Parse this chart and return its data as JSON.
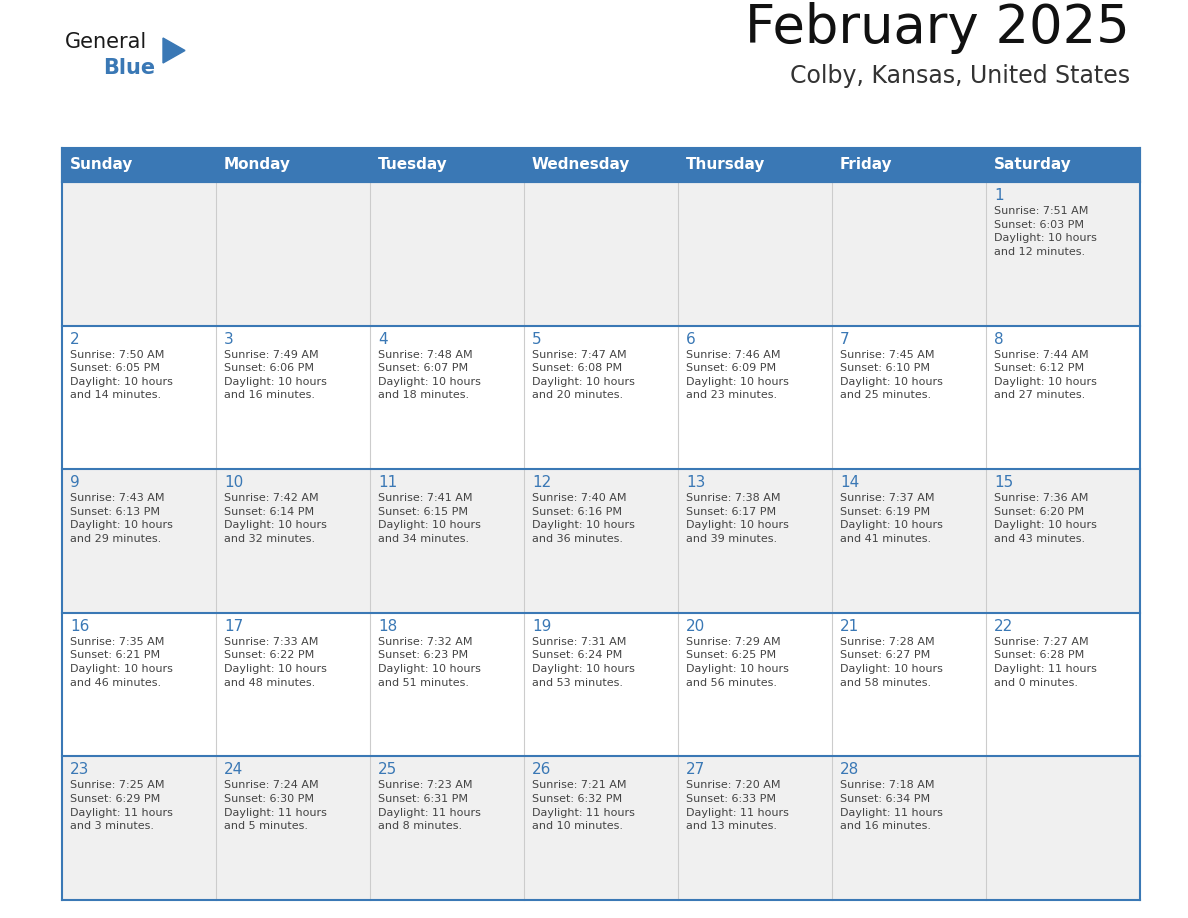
{
  "title": "February 2025",
  "subtitle": "Colby, Kansas, United States",
  "days_of_week": [
    "Sunday",
    "Monday",
    "Tuesday",
    "Wednesday",
    "Thursday",
    "Friday",
    "Saturday"
  ],
  "header_bg": "#3a78b5",
  "header_text": "#FFFFFF",
  "row_bg_1": "#f0f0f0",
  "row_bg_2": "#ffffff",
  "border_color": "#3a78b5",
  "cell_div_color": "#cccccc",
  "text_color": "#444444",
  "day_num_color": "#3a78b5",
  "logo_general_color": "#1a1a1a",
  "logo_blue_color": "#3a78b5",
  "logo_tri_color": "#3a78b5",
  "calendar_data": [
    [
      null,
      null,
      null,
      null,
      null,
      null,
      {
        "day": 1,
        "sunrise": "7:51 AM",
        "sunset": "6:03 PM",
        "daylight": "10 hours\nand 12 minutes."
      }
    ],
    [
      {
        "day": 2,
        "sunrise": "7:50 AM",
        "sunset": "6:05 PM",
        "daylight": "10 hours\nand 14 minutes."
      },
      {
        "day": 3,
        "sunrise": "7:49 AM",
        "sunset": "6:06 PM",
        "daylight": "10 hours\nand 16 minutes."
      },
      {
        "day": 4,
        "sunrise": "7:48 AM",
        "sunset": "6:07 PM",
        "daylight": "10 hours\nand 18 minutes."
      },
      {
        "day": 5,
        "sunrise": "7:47 AM",
        "sunset": "6:08 PM",
        "daylight": "10 hours\nand 20 minutes."
      },
      {
        "day": 6,
        "sunrise": "7:46 AM",
        "sunset": "6:09 PM",
        "daylight": "10 hours\nand 23 minutes."
      },
      {
        "day": 7,
        "sunrise": "7:45 AM",
        "sunset": "6:10 PM",
        "daylight": "10 hours\nand 25 minutes."
      },
      {
        "day": 8,
        "sunrise": "7:44 AM",
        "sunset": "6:12 PM",
        "daylight": "10 hours\nand 27 minutes."
      }
    ],
    [
      {
        "day": 9,
        "sunrise": "7:43 AM",
        "sunset": "6:13 PM",
        "daylight": "10 hours\nand 29 minutes."
      },
      {
        "day": 10,
        "sunrise": "7:42 AM",
        "sunset": "6:14 PM",
        "daylight": "10 hours\nand 32 minutes."
      },
      {
        "day": 11,
        "sunrise": "7:41 AM",
        "sunset": "6:15 PM",
        "daylight": "10 hours\nand 34 minutes."
      },
      {
        "day": 12,
        "sunrise": "7:40 AM",
        "sunset": "6:16 PM",
        "daylight": "10 hours\nand 36 minutes."
      },
      {
        "day": 13,
        "sunrise": "7:38 AM",
        "sunset": "6:17 PM",
        "daylight": "10 hours\nand 39 minutes."
      },
      {
        "day": 14,
        "sunrise": "7:37 AM",
        "sunset": "6:19 PM",
        "daylight": "10 hours\nand 41 minutes."
      },
      {
        "day": 15,
        "sunrise": "7:36 AM",
        "sunset": "6:20 PM",
        "daylight": "10 hours\nand 43 minutes."
      }
    ],
    [
      {
        "day": 16,
        "sunrise": "7:35 AM",
        "sunset": "6:21 PM",
        "daylight": "10 hours\nand 46 minutes."
      },
      {
        "day": 17,
        "sunrise": "7:33 AM",
        "sunset": "6:22 PM",
        "daylight": "10 hours\nand 48 minutes."
      },
      {
        "day": 18,
        "sunrise": "7:32 AM",
        "sunset": "6:23 PM",
        "daylight": "10 hours\nand 51 minutes."
      },
      {
        "day": 19,
        "sunrise": "7:31 AM",
        "sunset": "6:24 PM",
        "daylight": "10 hours\nand 53 minutes."
      },
      {
        "day": 20,
        "sunrise": "7:29 AM",
        "sunset": "6:25 PM",
        "daylight": "10 hours\nand 56 minutes."
      },
      {
        "day": 21,
        "sunrise": "7:28 AM",
        "sunset": "6:27 PM",
        "daylight": "10 hours\nand 58 minutes."
      },
      {
        "day": 22,
        "sunrise": "7:27 AM",
        "sunset": "6:28 PM",
        "daylight": "11 hours\nand 0 minutes."
      }
    ],
    [
      {
        "day": 23,
        "sunrise": "7:25 AM",
        "sunset": "6:29 PM",
        "daylight": "11 hours\nand 3 minutes."
      },
      {
        "day": 24,
        "sunrise": "7:24 AM",
        "sunset": "6:30 PM",
        "daylight": "11 hours\nand 5 minutes."
      },
      {
        "day": 25,
        "sunrise": "7:23 AM",
        "sunset": "6:31 PM",
        "daylight": "11 hours\nand 8 minutes."
      },
      {
        "day": 26,
        "sunrise": "7:21 AM",
        "sunset": "6:32 PM",
        "daylight": "11 hours\nand 10 minutes."
      },
      {
        "day": 27,
        "sunrise": "7:20 AM",
        "sunset": "6:33 PM",
        "daylight": "11 hours\nand 13 minutes."
      },
      {
        "day": 28,
        "sunrise": "7:18 AM",
        "sunset": "6:34 PM",
        "daylight": "11 hours\nand 16 minutes."
      },
      null
    ]
  ]
}
